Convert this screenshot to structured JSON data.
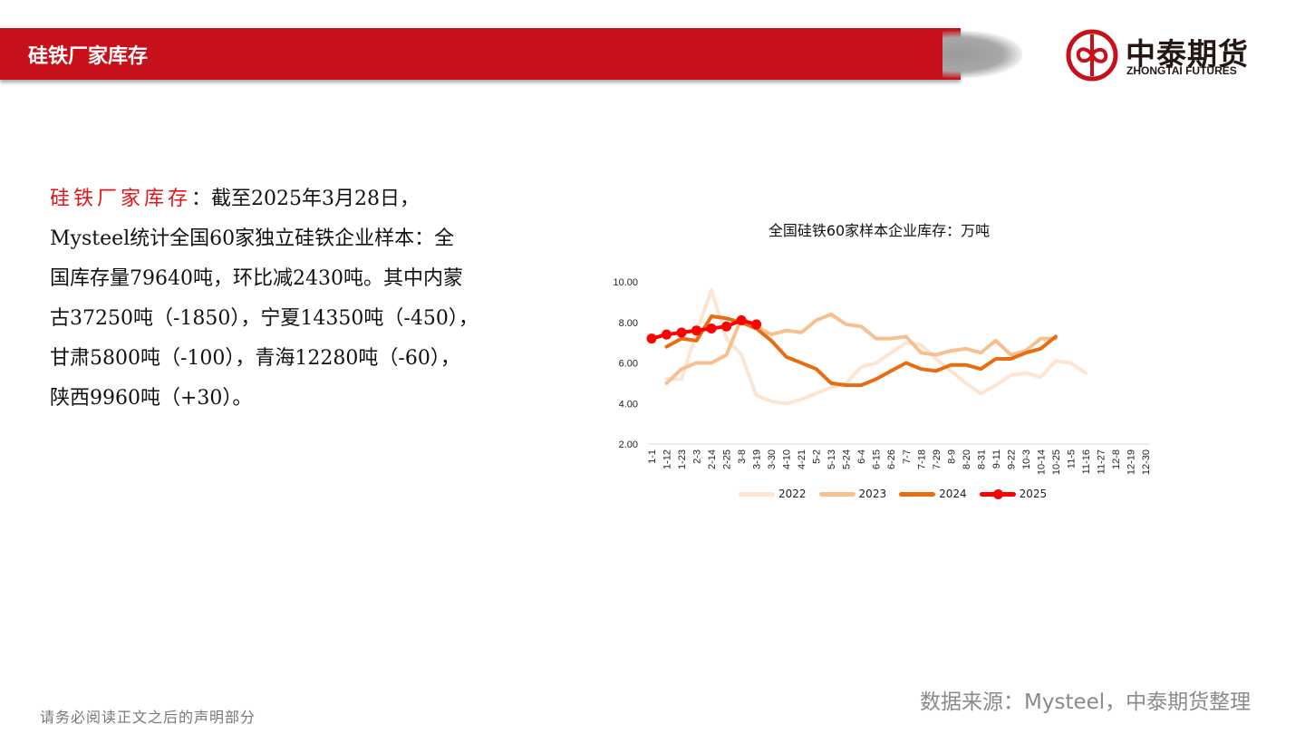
{
  "header": {
    "title": "硅铁厂家库存",
    "logo_cn": "中泰期货",
    "logo_en": "ZHONGTAI FUTURES",
    "brand_color": "#c8101b"
  },
  "description": {
    "highlight": "硅铁厂家库存",
    "lines": [
      "：截至2025年3月28日，",
      "Mysteel统计全国60家独立硅铁企业样本：全",
      "国库存量79640吨，环比减2430吨。其中内蒙",
      "古37250吨（-1850），宁夏14350吨（-450），",
      "甘肃5800吨（-100），青海12280吨（-60），",
      "陕西9960吨（+30）。"
    ]
  },
  "footer": {
    "disclaimer": "请务必阅读正文之后的声明部分",
    "source": "数据来源：Mysteel，中泰期货整理"
  },
  "chart_data": {
    "type": "line",
    "title": "全国硅铁60家样本企业库存：万吨",
    "xlabel": "",
    "ylabel": "",
    "ylim": [
      2,
      10
    ],
    "yticks": [
      "2.00",
      "4.00",
      "6.00",
      "8.00",
      "10.00"
    ],
    "grid": false,
    "legend_position": "bottom",
    "categories": [
      "1-1",
      "1-12",
      "1-23",
      "2-3",
      "2-14",
      "2-25",
      "3-8",
      "3-19",
      "3-30",
      "4-10",
      "4-21",
      "5-2",
      "5-13",
      "5-24",
      "6-4",
      "6-15",
      "6-26",
      "7-7",
      "7-18",
      "7-29",
      "8-9",
      "8-20",
      "8-31",
      "9-11",
      "9-22",
      "10-3",
      "10-14",
      "10-25",
      "11-5",
      "11-16",
      "11-27",
      "12-8",
      "12-19",
      "12-30"
    ],
    "series": [
      {
        "name": "2022",
        "color": "#fde5d3",
        "values": [
          null,
          5.2,
          5.2,
          7.5,
          9.6,
          7.2,
          6.4,
          4.4,
          4.1,
          4.0,
          4.2,
          4.5,
          4.8,
          5.0,
          5.8,
          6.0,
          6.5,
          7.0,
          6.9,
          6.2,
          5.6,
          5.0,
          4.5,
          4.9,
          5.4,
          5.5,
          5.3,
          6.1,
          6.0,
          5.5,
          null,
          null,
          null,
          null
        ]
      },
      {
        "name": "2023",
        "color": "#f8bf8f",
        "values": [
          null,
          5.0,
          5.7,
          6.0,
          6.0,
          6.4,
          8.2,
          7.8,
          7.4,
          7.6,
          7.5,
          8.1,
          8.4,
          7.9,
          7.8,
          7.2,
          7.2,
          7.3,
          6.5,
          6.4,
          6.6,
          6.7,
          6.5,
          7.1,
          6.4,
          6.6,
          7.2,
          7.2,
          null,
          null,
          null,
          null,
          null,
          null
        ]
      },
      {
        "name": "2024",
        "color": "#e66d10",
        "values": [
          null,
          6.8,
          7.2,
          7.1,
          8.3,
          8.2,
          8.0,
          7.7,
          7.1,
          6.3,
          6.0,
          5.7,
          5.0,
          4.9,
          4.9,
          5.2,
          5.6,
          6.0,
          5.7,
          5.6,
          5.9,
          5.9,
          5.7,
          6.2,
          6.2,
          6.5,
          6.7,
          7.3,
          null,
          null,
          null,
          null,
          null,
          null
        ]
      },
      {
        "name": "2025",
        "color": "#ff0000",
        "marker": "circle",
        "values": [
          7.2,
          7.4,
          7.5,
          7.6,
          7.7,
          7.8,
          8.1,
          7.9,
          null,
          null,
          null,
          null,
          null,
          null,
          null,
          null,
          null,
          null,
          null,
          null,
          null,
          null,
          null,
          null,
          null,
          null,
          null,
          null,
          null,
          null,
          null,
          null,
          null,
          null
        ]
      }
    ]
  }
}
